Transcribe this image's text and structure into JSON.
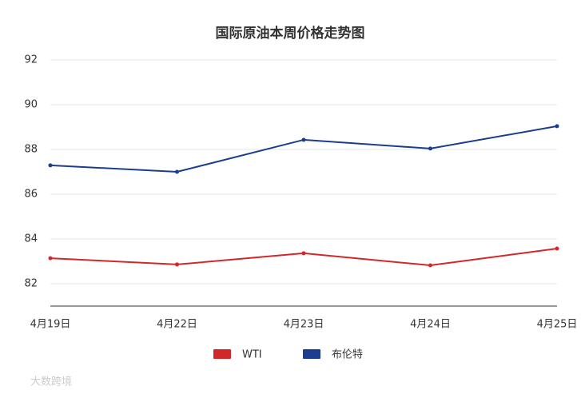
{
  "chart_data": {
    "type": "line",
    "title": "国际原油本周价格走势图",
    "categories": [
      "4月19日",
      "4月22日",
      "4月23日",
      "4月24日",
      "4月25日"
    ],
    "series": [
      {
        "name": "WTI",
        "color": "#d3282a",
        "values": [
          83.14,
          82.86,
          83.36,
          82.82,
          83.57
        ]
      },
      {
        "name": "布伦特",
        "color": "#1a3d8f",
        "values": [
          87.29,
          87.0,
          88.43,
          88.04,
          89.04
        ]
      }
    ],
    "ylim": [
      81,
      92
    ],
    "yticks": [
      82,
      84,
      86,
      88,
      90,
      92
    ],
    "grid": true,
    "legend": "bottom",
    "watermark": "大数跨境"
  }
}
